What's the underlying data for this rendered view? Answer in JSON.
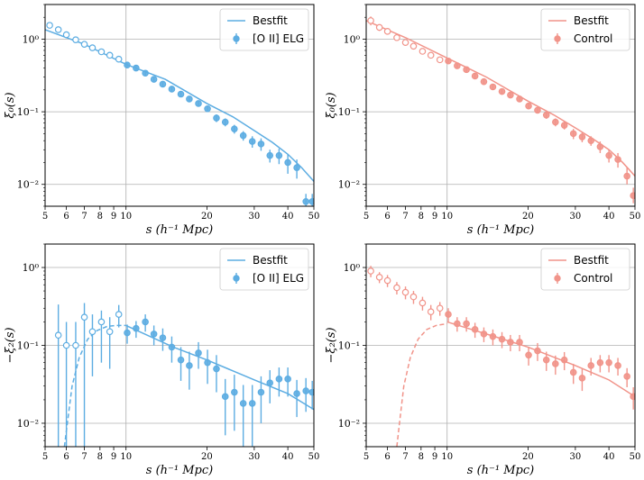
{
  "chart_data": [
    {
      "type": "scatter",
      "panel": "top-left",
      "color": "#5dade2",
      "xscale": "log",
      "yscale": "log",
      "xlim": [
        5,
        50
      ],
      "ylim": [
        0.005,
        3
      ],
      "xlabel": "s (h⁻¹ Mpc)",
      "ylabel": "ξ₀(s)",
      "xticks": [
        5,
        6,
        7,
        8,
        9,
        10,
        20,
        30,
        40,
        50
      ],
      "xtick_labels": [
        "5",
        "6",
        "7",
        "8",
        "9",
        "10",
        "20",
        "30",
        "40",
        "50"
      ],
      "yticks": [
        0.01,
        0.1,
        1
      ],
      "ytick_labels": [
        "10⁻²",
        "10⁻¹",
        "10⁰"
      ],
      "vline": 10,
      "legend": {
        "location": "top-right",
        "line": "Bestfit",
        "points": "[O II] ELG"
      },
      "bestfit": {
        "style": "solid",
        "x": [
          5,
          7,
          10,
          14,
          20,
          25,
          30,
          35,
          40,
          45,
          50
        ],
        "y": [
          1.35,
          0.85,
          0.45,
          0.28,
          0.13,
          0.085,
          0.055,
          0.038,
          0.026,
          0.017,
          0.011
        ]
      },
      "open_points": {
        "x": [
          5.2,
          5.6,
          6.0,
          6.5,
          7.0,
          7.5,
          8.1,
          8.7,
          9.4
        ],
        "y": [
          1.55,
          1.35,
          1.15,
          0.98,
          0.85,
          0.76,
          0.67,
          0.6,
          0.53
        ],
        "err_lo": [
          0.1,
          0.1,
          0.08,
          0.07,
          0.06,
          0.05,
          0.05,
          0.04,
          0.04
        ],
        "err_hi": [
          0.12,
          0.1,
          0.08,
          0.07,
          0.06,
          0.05,
          0.05,
          0.04,
          0.04
        ]
      },
      "filled_points": {
        "x": [
          10.1,
          10.9,
          11.8,
          12.7,
          13.7,
          14.8,
          16.0,
          17.2,
          18.6,
          20.1,
          21.7,
          23.4,
          25.3,
          27.3,
          29.5,
          31.8,
          34.3,
          37.1,
          40.0,
          43.2,
          46.7,
          49.3
        ],
        "y": [
          0.44,
          0.4,
          0.34,
          0.28,
          0.24,
          0.205,
          0.175,
          0.15,
          0.13,
          0.11,
          0.082,
          0.072,
          0.058,
          0.047,
          0.039,
          0.036,
          0.025,
          0.025,
          0.02,
          0.017,
          0.0058,
          0.0058
        ],
        "err_lo": [
          0.03,
          0.03,
          0.025,
          0.02,
          0.02,
          0.018,
          0.015,
          0.013,
          0.012,
          0.01,
          0.01,
          0.009,
          0.008,
          0.007,
          0.007,
          0.007,
          0.005,
          0.006,
          0.006,
          0.005,
          0.0012,
          0.0012
        ],
        "err_hi": [
          0.03,
          0.03,
          0.025,
          0.02,
          0.02,
          0.018,
          0.015,
          0.013,
          0.012,
          0.01,
          0.01,
          0.009,
          0.008,
          0.007,
          0.007,
          0.007,
          0.005,
          0.006,
          0.006,
          0.005,
          0.0016,
          0.0016
        ]
      }
    },
    {
      "type": "scatter",
      "panel": "top-right",
      "color": "#f1948a",
      "xscale": "log",
      "yscale": "log",
      "xlim": [
        5,
        50
      ],
      "ylim": [
        0.005,
        3
      ],
      "xlabel": "s (h⁻¹ Mpc)",
      "ylabel": "ξ₀(s)",
      "xticks": [
        5,
        6,
        7,
        8,
        9,
        10,
        20,
        30,
        40,
        50
      ],
      "xtick_labels": [
        "5",
        "6",
        "7",
        "8",
        "9",
        "10",
        "20",
        "30",
        "40",
        "50"
      ],
      "yticks": [
        0.01,
        0.1,
        1
      ],
      "ytick_labels": [
        "10⁻²",
        "10⁻¹",
        "10⁰"
      ],
      "vline": 10,
      "legend": {
        "location": "top-right",
        "line": "Bestfit",
        "points": "Control"
      },
      "bestfit": {
        "style": "solid",
        "x": [
          5,
          7,
          10,
          14,
          20,
          25,
          30,
          35,
          40,
          45,
          50
        ],
        "y": [
          1.8,
          1.05,
          0.55,
          0.3,
          0.14,
          0.09,
          0.06,
          0.042,
          0.03,
          0.02,
          0.013
        ]
      },
      "open_points": {
        "x": [
          5.2,
          5.6,
          6.0,
          6.5,
          7.0,
          7.5,
          8.1,
          8.7,
          9.4
        ],
        "y": [
          1.8,
          1.45,
          1.28,
          1.05,
          0.9,
          0.8,
          0.68,
          0.6,
          0.52
        ],
        "err_lo": [
          0.25,
          0.15,
          0.12,
          0.1,
          0.08,
          0.07,
          0.06,
          0.05,
          0.05
        ],
        "err_hi": [
          0.25,
          0.15,
          0.12,
          0.1,
          0.08,
          0.07,
          0.06,
          0.05,
          0.05
        ]
      },
      "filled_points": {
        "x": [
          10.1,
          10.9,
          11.8,
          12.7,
          13.7,
          14.8,
          16.0,
          17.2,
          18.6,
          20.1,
          21.7,
          23.4,
          25.3,
          27.3,
          29.5,
          31.8,
          34.3,
          37.1,
          40.0,
          43.2,
          46.7,
          49.3
        ],
        "y": [
          0.5,
          0.43,
          0.38,
          0.31,
          0.26,
          0.22,
          0.19,
          0.17,
          0.15,
          0.12,
          0.105,
          0.09,
          0.072,
          0.065,
          0.05,
          0.045,
          0.04,
          0.033,
          0.025,
          0.022,
          0.013,
          0.007
        ],
        "err_lo": [
          0.04,
          0.03,
          0.03,
          0.025,
          0.02,
          0.02,
          0.018,
          0.015,
          0.013,
          0.012,
          0.01,
          0.01,
          0.009,
          0.008,
          0.008,
          0.007,
          0.006,
          0.006,
          0.005,
          0.005,
          0.003,
          0.0015
        ],
        "err_hi": [
          0.04,
          0.03,
          0.03,
          0.025,
          0.02,
          0.02,
          0.018,
          0.015,
          0.013,
          0.012,
          0.01,
          0.01,
          0.009,
          0.008,
          0.008,
          0.007,
          0.006,
          0.006,
          0.005,
          0.005,
          0.004,
          0.002
        ]
      }
    },
    {
      "type": "scatter",
      "panel": "bottom-left",
      "color": "#5dade2",
      "xscale": "log",
      "yscale": "log",
      "xlim": [
        5,
        50
      ],
      "ylim": [
        0.005,
        2
      ],
      "xlabel": "s (h⁻¹ Mpc)",
      "ylabel": "−ξ₂(s)",
      "xticks": [
        5,
        6,
        7,
        8,
        9,
        10,
        20,
        30,
        40,
        50
      ],
      "xtick_labels": [
        "5",
        "6",
        "7",
        "8",
        "9",
        "10",
        "20",
        "30",
        "40",
        "50"
      ],
      "yticks": [
        0.01,
        0.1,
        1
      ],
      "ytick_labels": [
        "10⁻²",
        "10⁻¹",
        "10⁰"
      ],
      "vline": 10,
      "legend": {
        "location": "top-right",
        "line": "Bestfit",
        "points": "[O II] ELG"
      },
      "bestfit": {
        "style": "solid",
        "x": [
          10,
          15,
          20,
          30,
          40,
          50
        ],
        "y": [
          0.18,
          0.095,
          0.065,
          0.036,
          0.024,
          0.015
        ]
      },
      "bestfit_dashed": {
        "style": "dashed",
        "x": [
          5.9,
          6.05,
          6.3,
          6.7,
          7.2,
          7.8,
          8.5,
          9.2,
          10
        ],
        "y": [
          0.005,
          0.01,
          0.03,
          0.07,
          0.12,
          0.155,
          0.175,
          0.18,
          0.18
        ]
      },
      "open_points": {
        "x": [
          5.6,
          6.0,
          6.5,
          7.0,
          7.5,
          8.1,
          8.7,
          9.4
        ],
        "y": [
          0.135,
          0.1,
          0.1,
          0.23,
          0.15,
          0.2,
          0.15,
          0.25
        ],
        "err_lo": [
          0.13,
          0.097,
          0.097,
          0.227,
          0.11,
          0.14,
          0.1,
          0.08
        ],
        "err_hi": [
          0.2,
          0.1,
          0.1,
          0.12,
          0.1,
          0.08,
          0.08,
          0.08
        ]
      },
      "filled_points": {
        "x": [
          10.1,
          10.9,
          11.8,
          12.7,
          13.7,
          14.8,
          16.0,
          17.2,
          18.6,
          20.1,
          21.7,
          23.4,
          25.3,
          27.3,
          29.5,
          31.8,
          34.3,
          37.1,
          40.0,
          43.2,
          46.7,
          49.3
        ],
        "y": [
          0.145,
          0.165,
          0.2,
          0.14,
          0.125,
          0.095,
          0.065,
          0.055,
          0.08,
          0.06,
          0.05,
          0.022,
          0.025,
          0.018,
          0.018,
          0.025,
          0.033,
          0.037,
          0.037,
          0.024,
          0.026,
          0.025
        ],
        "err_lo": [
          0.04,
          0.04,
          0.05,
          0.04,
          0.04,
          0.035,
          0.03,
          0.028,
          0.03,
          0.028,
          0.025,
          0.015,
          0.017,
          0.013,
          0.013,
          0.015,
          0.015,
          0.015,
          0.015,
          0.012,
          0.012,
          0.01
        ],
        "err_hi": [
          0.04,
          0.04,
          0.05,
          0.04,
          0.04,
          0.035,
          0.03,
          0.028,
          0.03,
          0.028,
          0.025,
          0.015,
          0.017,
          0.013,
          0.013,
          0.015,
          0.015,
          0.015,
          0.015,
          0.012,
          0.012,
          0.01
        ]
      }
    },
    {
      "type": "scatter",
      "panel": "bottom-right",
      "color": "#f1948a",
      "xscale": "log",
      "yscale": "log",
      "xlim": [
        5,
        50
      ],
      "ylim": [
        0.005,
        2
      ],
      "xlabel": "s (h⁻¹ Mpc)",
      "ylabel": "−ξ₂(s)",
      "xticks": [
        5,
        6,
        7,
        8,
        9,
        10,
        20,
        30,
        40,
        50
      ],
      "xtick_labels": [
        "5",
        "6",
        "7",
        "8",
        "9",
        "10",
        "20",
        "30",
        "40",
        "50"
      ],
      "yticks": [
        0.01,
        0.1,
        1
      ],
      "ytick_labels": [
        "10⁻²",
        "10⁻¹",
        "10⁰"
      ],
      "vline": 10,
      "legend": {
        "location": "top-right",
        "line": "Bestfit",
        "points": "Control"
      },
      "bestfit": {
        "style": "solid",
        "x": [
          10,
          15,
          20,
          30,
          40,
          50
        ],
        "y": [
          0.2,
          0.13,
          0.095,
          0.055,
          0.036,
          0.022
        ]
      },
      "bestfit_dashed": {
        "style": "dashed",
        "x": [
          6.5,
          6.65,
          6.9,
          7.3,
          7.8,
          8.4,
          9.1,
          10
        ],
        "y": [
          0.005,
          0.01,
          0.03,
          0.07,
          0.12,
          0.16,
          0.18,
          0.19
        ]
      },
      "open_points": {
        "x": [
          5.2,
          5.6,
          6.0,
          6.5,
          7.0,
          7.5,
          8.1,
          8.7,
          9.4
        ],
        "y": [
          0.9,
          0.75,
          0.68,
          0.55,
          0.48,
          0.42,
          0.35,
          0.27,
          0.3
        ],
        "err_lo": [
          0.15,
          0.12,
          0.12,
          0.1,
          0.09,
          0.08,
          0.07,
          0.06,
          0.06
        ],
        "err_hi": [
          0.15,
          0.12,
          0.12,
          0.1,
          0.09,
          0.08,
          0.07,
          0.06,
          0.06
        ]
      },
      "filled_points": {
        "x": [
          10.1,
          10.9,
          11.8,
          12.7,
          13.7,
          14.8,
          16.0,
          17.2,
          18.6,
          20.1,
          21.7,
          23.4,
          25.3,
          27.3,
          29.5,
          31.8,
          34.3,
          37.1,
          40.0,
          43.2,
          46.7,
          49.3
        ],
        "y": [
          0.25,
          0.19,
          0.19,
          0.16,
          0.14,
          0.13,
          0.12,
          0.11,
          0.11,
          0.075,
          0.085,
          0.065,
          0.058,
          0.065,
          0.045,
          0.038,
          0.055,
          0.06,
          0.06,
          0.055,
          0.04,
          0.022
        ],
        "err_lo": [
          0.05,
          0.04,
          0.04,
          0.035,
          0.03,
          0.03,
          0.028,
          0.026,
          0.026,
          0.02,
          0.022,
          0.018,
          0.016,
          0.017,
          0.013,
          0.012,
          0.014,
          0.015,
          0.015,
          0.014,
          0.011,
          0.007
        ],
        "err_hi": [
          0.05,
          0.04,
          0.04,
          0.035,
          0.03,
          0.03,
          0.028,
          0.026,
          0.026,
          0.02,
          0.022,
          0.018,
          0.016,
          0.017,
          0.013,
          0.012,
          0.014,
          0.015,
          0.015,
          0.014,
          0.011,
          0.007
        ]
      }
    }
  ]
}
